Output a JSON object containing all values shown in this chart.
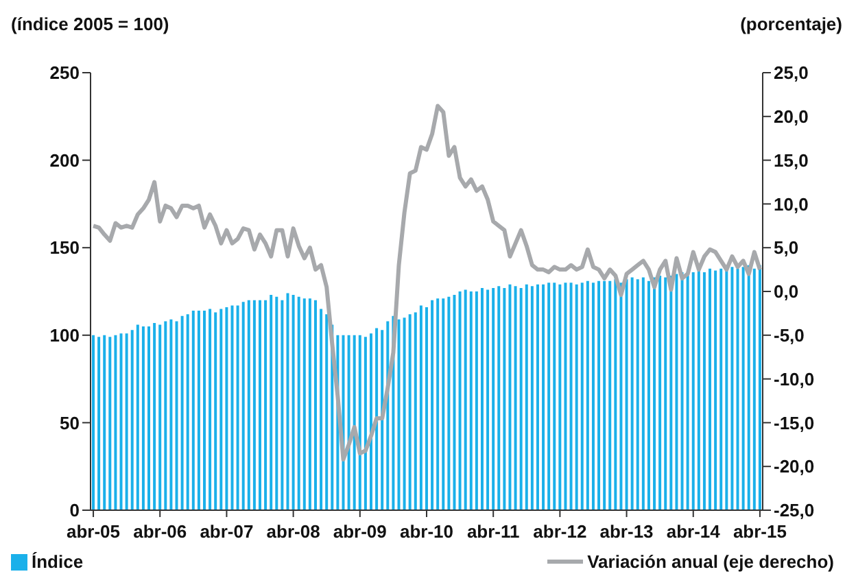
{
  "chart_data": {
    "type": "bar",
    "ylabel": "(índice 2005 = 100)",
    "y2label": "(porcentaje)",
    "categories": [
      "abr-05",
      null,
      null,
      null,
      null,
      null,
      null,
      null,
      null,
      null,
      null,
      null,
      "abr-06",
      null,
      null,
      null,
      null,
      null,
      null,
      null,
      null,
      null,
      null,
      null,
      "abr-07",
      null,
      null,
      null,
      null,
      null,
      null,
      null,
      null,
      null,
      null,
      null,
      "abr-08",
      null,
      null,
      null,
      null,
      null,
      null,
      null,
      null,
      null,
      null,
      null,
      "abr-09",
      null,
      null,
      null,
      null,
      null,
      null,
      null,
      null,
      null,
      null,
      null,
      "abr-10",
      null,
      null,
      null,
      null,
      null,
      null,
      null,
      null,
      null,
      null,
      null,
      "abr-11",
      null,
      null,
      null,
      null,
      null,
      null,
      null,
      null,
      null,
      null,
      null,
      "abr-12",
      null,
      null,
      null,
      null,
      null,
      null,
      null,
      null,
      null,
      null,
      null,
      "abr-13",
      null,
      null,
      null,
      null,
      null,
      null,
      null,
      null,
      null,
      null,
      null,
      "abr-14",
      null,
      null,
      null,
      null,
      null,
      null,
      null,
      null,
      null,
      null,
      null,
      "abr-15"
    ],
    "series": [
      {
        "name": "Índice",
        "color": "#1ab0ea",
        "values": [
          100,
          99,
          100,
          99,
          100,
          101,
          101,
          103,
          106,
          105,
          105,
          107,
          106,
          108,
          109,
          108,
          111,
          112,
          114,
          114,
          114,
          115,
          113,
          115,
          116,
          117,
          117,
          119,
          120,
          120,
          120,
          120,
          123,
          122,
          120,
          124,
          123,
          122,
          121,
          121,
          120,
          115,
          112,
          106,
          100,
          100,
          100,
          100,
          100,
          99,
          101,
          104,
          103,
          108,
          111,
          109,
          110,
          112,
          113,
          117,
          116,
          120,
          121,
          121,
          122,
          123,
          125,
          126,
          125,
          125,
          127,
          126,
          127,
          128,
          127,
          129,
          128,
          127,
          129,
          128,
          129,
          129,
          130,
          130,
          129,
          130,
          130,
          129,
          130,
          131,
          130,
          131,
          131,
          131,
          132,
          130,
          132,
          133,
          132,
          133,
          131,
          133,
          134,
          133,
          134,
          135,
          136,
          134,
          136,
          137,
          136,
          138,
          137,
          138,
          137,
          139,
          138,
          139,
          140,
          138,
          140
        ]
      },
      {
        "name": "Variación anual (eje derecho)",
        "type": "line",
        "axis": "y2",
        "color": "#a7a9ac",
        "values": [
          7.5,
          7.3,
          6.5,
          5.8,
          7.8,
          7.3,
          7.5,
          7.3,
          8.8,
          9.5,
          10.5,
          12.5,
          8.0,
          9.8,
          9.5,
          8.5,
          9.8,
          9.8,
          9.5,
          9.8,
          7.3,
          8.8,
          7.5,
          5.5,
          7.0,
          5.5,
          6.0,
          7.2,
          7.0,
          4.8,
          6.5,
          5.5,
          4.0,
          7.0,
          7.0,
          4.0,
          7.2,
          5.2,
          3.8,
          5.0,
          2.5,
          3.0,
          0.5,
          -6.0,
          -12.0,
          -19.2,
          -17.5,
          -15.5,
          -18.5,
          -18.2,
          -16.5,
          -14.5,
          -14.5,
          -11.0,
          -7.0,
          3.0,
          9.0,
          13.5,
          13.8,
          16.5,
          16.2,
          18.0,
          21.2,
          20.5,
          15.5,
          16.5,
          13.0,
          12.0,
          12.8,
          11.5,
          12.0,
          10.5,
          8.0,
          7.5,
          7.0,
          4.0,
          5.5,
          7.0,
          5.2,
          3.0,
          2.5,
          2.5,
          2.2,
          2.8,
          2.5,
          2.5,
          3.0,
          2.5,
          2.8,
          4.8,
          2.8,
          2.5,
          1.5,
          2.5,
          1.8,
          -0.4,
          2.0,
          2.5,
          3.0,
          3.5,
          2.5,
          0.5,
          2.5,
          3.5,
          0.2,
          3.8,
          1.5,
          2.0,
          4.5,
          2.5,
          4.0,
          4.8,
          4.5,
          3.5,
          2.5,
          4.0,
          2.8,
          3.5,
          2.0,
          4.5,
          2.5
        ]
      }
    ],
    "ylim": [
      0,
      250
    ],
    "yticks": [
      0,
      50,
      100,
      150,
      200,
      250
    ],
    "y2lim": [
      -25,
      25
    ],
    "y2ticks": [
      {
        "value": -25,
        "label": "-25,0"
      },
      {
        "value": -20,
        "label": "-20,0"
      },
      {
        "value": -15,
        "label": "-15,0"
      },
      {
        "value": -10,
        "label": "-10,0"
      },
      {
        "value": -5,
        "label": "-5,0"
      },
      {
        "value": 0,
        "label": "0,0"
      },
      {
        "value": 5,
        "label": "5,0"
      },
      {
        "value": 10,
        "label": "10,0"
      },
      {
        "value": 15,
        "label": "15,0"
      },
      {
        "value": 20,
        "label": "20,0"
      },
      {
        "value": 25,
        "label": "25,0"
      }
    ],
    "marker": "none",
    "legend": "bottom"
  }
}
